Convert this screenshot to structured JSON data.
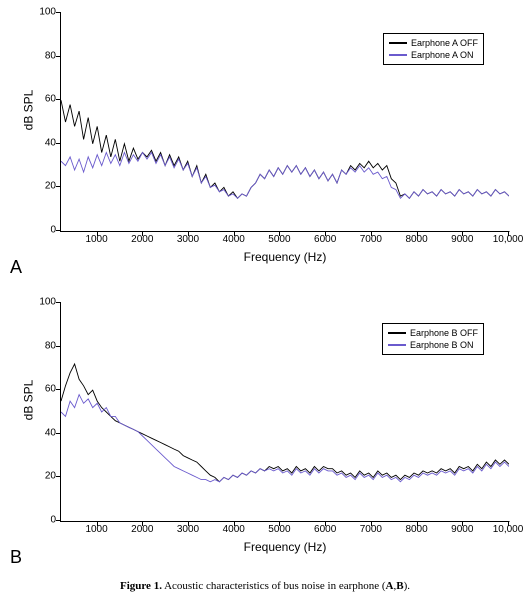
{
  "figure": {
    "caption_prefix": "Figure 1.",
    "caption_text": " Acoustic characteristics of bus noise in earphone (",
    "caption_bold_a": "A",
    "caption_mid": ",",
    "caption_bold_b": "B",
    "caption_end": ")."
  },
  "panels": [
    {
      "id": "A",
      "letter": "A",
      "type": "line",
      "xlabel": "Frequency (Hz)",
      "ylabel": "dB SPL",
      "xlim": [
        200,
        10000
      ],
      "ylim": [
        0,
        100
      ],
      "xtick_step": 1000,
      "ytick_step": 20,
      "xticks": [
        1000,
        2000,
        3000,
        4000,
        5000,
        6000,
        7000,
        8000,
        9000,
        10000
      ],
      "xtick_labels": [
        "1000",
        "2000",
        "3000",
        "4000",
        "5000",
        "6000",
        "7000",
        "8000",
        "9000",
        "10,000"
      ],
      "yticks": [
        0,
        20,
        40,
        60,
        80,
        100
      ],
      "background_color": "#ffffff",
      "axis_color": "#000000",
      "line_width": 0.9,
      "legend_pos": "top-right",
      "label_fontsize": 12,
      "tick_fontsize": 10,
      "series": [
        {
          "name": "Earphone A OFF",
          "color": "#000000",
          "y": [
            60,
            50,
            58,
            48,
            55,
            42,
            52,
            40,
            48,
            36,
            44,
            34,
            42,
            32,
            40,
            32,
            38,
            33,
            36,
            34,
            37,
            32,
            36,
            30,
            35,
            30,
            34,
            28,
            32,
            25,
            30,
            22,
            26,
            20,
            22,
            18,
            20,
            16,
            18,
            15,
            17,
            16,
            20,
            22,
            26,
            24,
            28,
            25,
            29,
            26,
            30,
            27,
            30,
            26,
            29,
            25,
            28,
            24,
            27,
            23,
            26,
            22,
            28,
            26,
            30,
            28,
            31,
            29,
            32,
            29,
            31,
            28,
            30,
            24,
            22,
            16,
            17,
            15,
            18,
            16,
            19,
            17,
            18,
            16,
            19,
            17,
            18,
            16,
            19,
            17,
            18,
            16,
            19,
            17,
            18,
            16,
            19,
            17,
            18,
            16
          ]
        },
        {
          "name": "Earphone A ON",
          "color": "#6a5acd",
          "y": [
            32,
            30,
            34,
            28,
            33,
            27,
            34,
            29,
            35,
            30,
            36,
            31,
            35,
            30,
            36,
            31,
            35,
            32,
            36,
            33,
            36,
            31,
            35,
            30,
            34,
            29,
            33,
            28,
            31,
            25,
            29,
            22,
            25,
            20,
            21,
            18,
            19,
            16,
            17,
            15,
            17,
            16,
            20,
            22,
            26,
            24,
            28,
            25,
            29,
            26,
            30,
            27,
            30,
            26,
            29,
            25,
            28,
            24,
            27,
            23,
            26,
            22,
            28,
            26,
            29,
            27,
            30,
            27,
            29,
            26,
            27,
            24,
            25,
            20,
            19,
            15,
            17,
            15,
            18,
            16,
            19,
            17,
            18,
            16,
            19,
            17,
            18,
            16,
            19,
            17,
            18,
            16,
            19,
            17,
            18,
            16,
            19,
            17,
            18,
            16
          ]
        }
      ]
    },
    {
      "id": "B",
      "letter": "B",
      "type": "line",
      "xlabel": "Frequency (Hz)",
      "ylabel": "dB SPL",
      "xlim": [
        200,
        10000
      ],
      "ylim": [
        0,
        100
      ],
      "xtick_step": 1000,
      "ytick_step": 20,
      "xticks": [
        1000,
        2000,
        3000,
        4000,
        5000,
        6000,
        7000,
        8000,
        9000,
        10000
      ],
      "xtick_labels": [
        "1000",
        "2000",
        "3000",
        "4000",
        "5000",
        "6000",
        "7000",
        "8000",
        "9000",
        "10,000"
      ],
      "yticks": [
        0,
        20,
        40,
        60,
        80,
        100
      ],
      "background_color": "#ffffff",
      "axis_color": "#000000",
      "line_width": 0.9,
      "legend_pos": "top-right",
      "label_fontsize": 12,
      "tick_fontsize": 10,
      "series": [
        {
          "name": "Earphone B OFF",
          "color": "#000000",
          "y": [
            55,
            62,
            68,
            72,
            65,
            62,
            58,
            60,
            55,
            52,
            50,
            48,
            46,
            45,
            44,
            43,
            42,
            41,
            40,
            39,
            38,
            37,
            36,
            35,
            34,
            33,
            32,
            30,
            29,
            28,
            27,
            25,
            23,
            21,
            20,
            18,
            20,
            19,
            21,
            20,
            22,
            21,
            23,
            22,
            24,
            23,
            25,
            24,
            25,
            23,
            24,
            22,
            25,
            23,
            24,
            22,
            25,
            23,
            25,
            24,
            24,
            22,
            23,
            21,
            22,
            20,
            23,
            21,
            22,
            20,
            23,
            21,
            22,
            20,
            21,
            19,
            21,
            20,
            22,
            21,
            23,
            22,
            23,
            22,
            24,
            23,
            24,
            22,
            25,
            24,
            25,
            23,
            26,
            24,
            27,
            25,
            28,
            26,
            28,
            26
          ]
        },
        {
          "name": "Earphone B ON",
          "color": "#6a5acd",
          "y": [
            50,
            48,
            55,
            52,
            58,
            54,
            56,
            52,
            54,
            50,
            52,
            48,
            48,
            45,
            44,
            43,
            42,
            41,
            39,
            37,
            35,
            33,
            31,
            29,
            27,
            25,
            24,
            23,
            22,
            21,
            20,
            19,
            19,
            18,
            19,
            18,
            20,
            19,
            21,
            20,
            22,
            21,
            23,
            22,
            24,
            23,
            24,
            23,
            24,
            22,
            23,
            21,
            24,
            22,
            23,
            21,
            24,
            22,
            24,
            23,
            23,
            21,
            22,
            20,
            21,
            19,
            22,
            20,
            21,
            19,
            22,
            20,
            21,
            19,
            20,
            18,
            20,
            19,
            21,
            20,
            22,
            21,
            22,
            21,
            23,
            22,
            23,
            21,
            24,
            23,
            24,
            22,
            25,
            23,
            26,
            24,
            27,
            25,
            27,
            25
          ]
        }
      ]
    }
  ]
}
